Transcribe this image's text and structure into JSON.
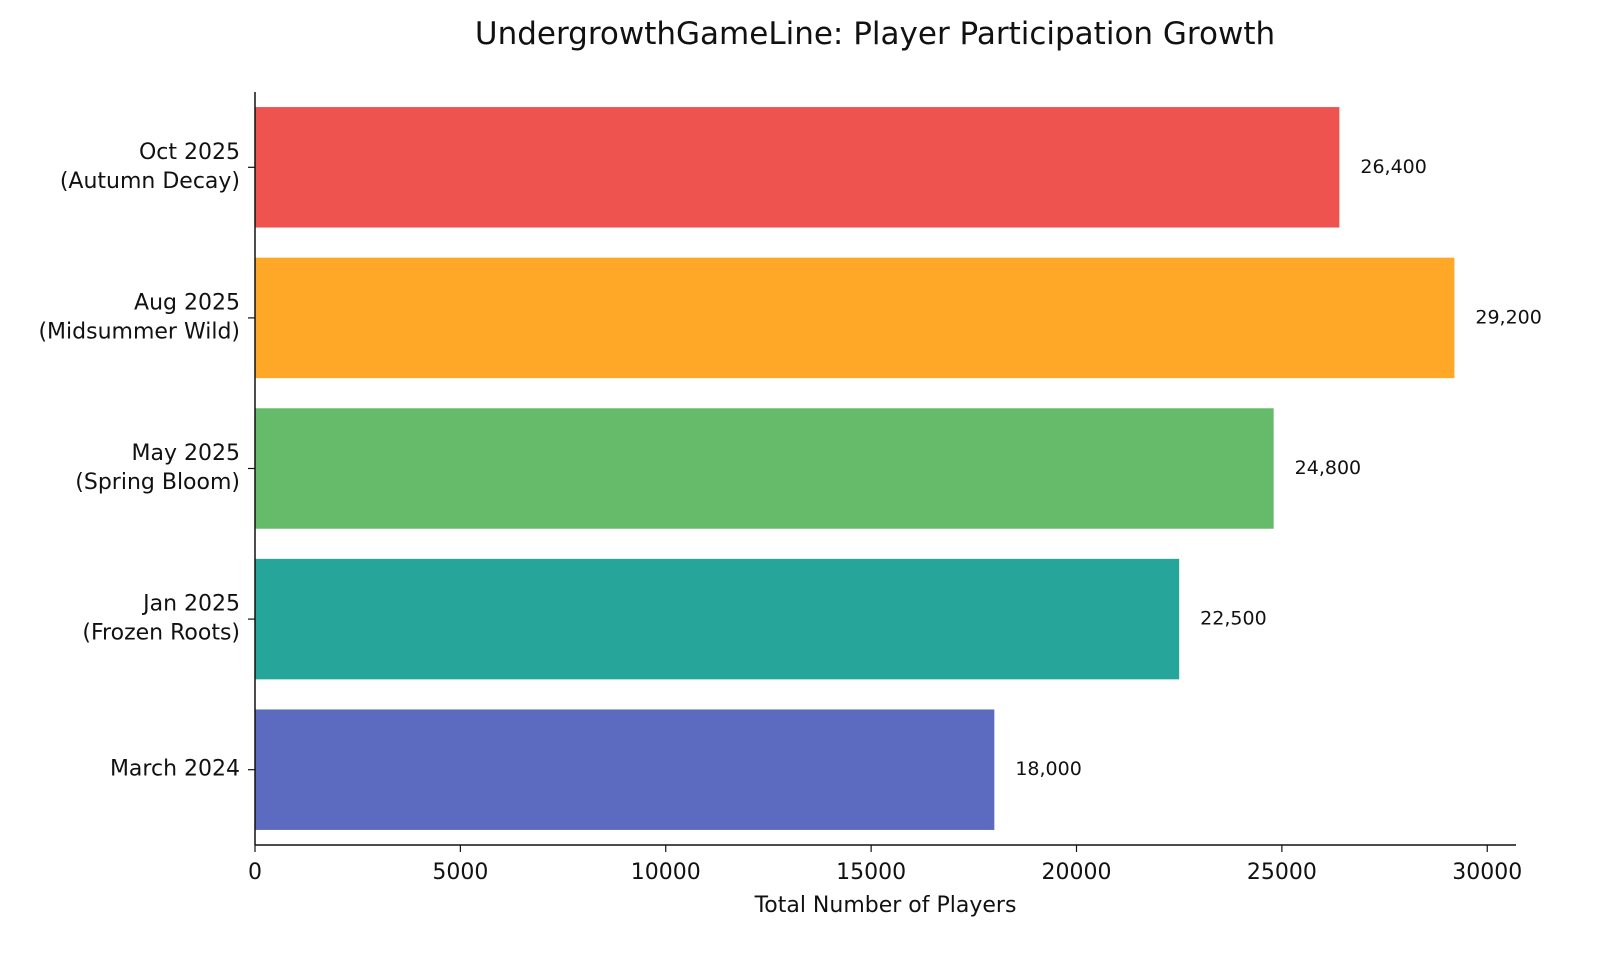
{
  "chart_data": {
    "type": "bar",
    "orientation": "horizontal",
    "title": "UndergrowthGameLine: Player Participation Growth",
    "xlabel": "Total Number of Players",
    "ylabel": "",
    "xlim": [
      0,
      30700
    ],
    "xticks": [
      0,
      5000,
      10000,
      15000,
      20000,
      25000,
      30000
    ],
    "grid": false,
    "categories": [
      [
        "Oct 2025",
        "(Autumn Decay)"
      ],
      [
        "Aug 2025",
        "(Midsummer Wild)"
      ],
      [
        "May 2025",
        "(Spring Bloom)"
      ],
      [
        "Jan 2025",
        "(Frozen Roots)"
      ],
      [
        "March 2024"
      ]
    ],
    "values": [
      26400,
      29200,
      24800,
      22500,
      18000
    ],
    "value_labels": [
      "26,400",
      "29,200",
      "24,800",
      "22,500",
      "18,000"
    ],
    "colors": [
      "#EF5350",
      "#FFA726",
      "#66BB6A",
      "#26A69A",
      "#5C6BC0"
    ]
  }
}
